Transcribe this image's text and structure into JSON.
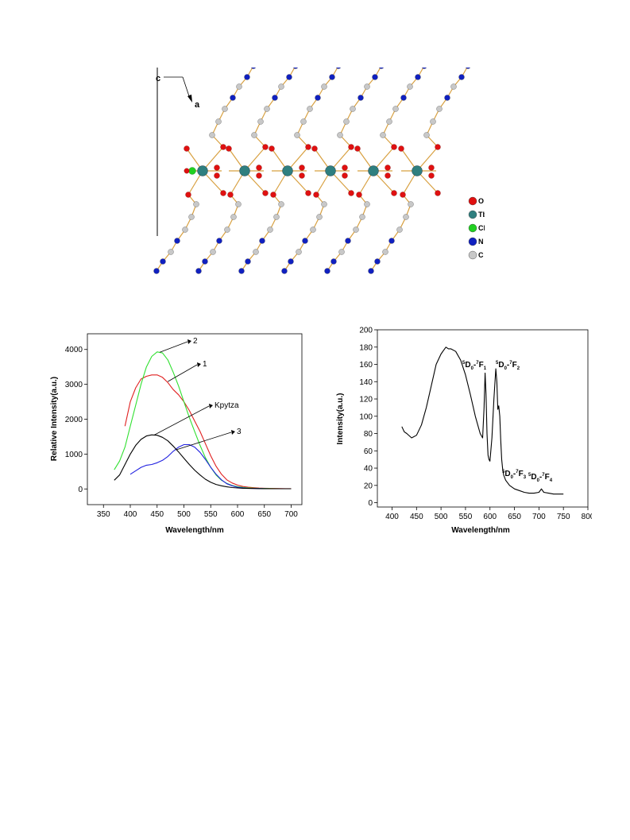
{
  "crystal": {
    "axis_c": "c",
    "axis_a": "a",
    "legend": [
      {
        "label": "O",
        "color": "#e01010"
      },
      {
        "label": "Tb",
        "color": "#2f7f7f"
      },
      {
        "label": "Cl",
        "color": "#20d020"
      },
      {
        "label": "N",
        "color": "#1020c0"
      },
      {
        "label": "C",
        "color": "#c8c8c8"
      }
    ]
  },
  "chart_data": [
    {
      "type": "line",
      "xlabel": "Wavelength/nm",
      "ylabel": "Relative Intensity(a.u.)",
      "xlim": [
        320,
        720
      ],
      "ylim": [
        -450,
        4450
      ],
      "xticks": [
        350,
        400,
        450,
        500,
        550,
        600,
        650,
        700
      ],
      "yticks": [
        0,
        1000,
        2000,
        3000,
        4000
      ],
      "series": [
        {
          "name": "1",
          "color": "#e02020",
          "x": [
            390,
            400,
            410,
            420,
            430,
            440,
            450,
            460,
            470,
            480,
            490,
            500,
            510,
            520,
            530,
            540,
            550,
            560,
            570,
            580,
            590,
            600,
            610,
            620,
            630,
            640,
            650,
            660,
            670,
            680,
            690,
            700
          ],
          "y": [
            1800,
            2500,
            2900,
            3150,
            3230,
            3270,
            3270,
            3200,
            3050,
            2850,
            2700,
            2500,
            2250,
            1950,
            1650,
            1300,
            950,
            650,
            420,
            260,
            170,
            110,
            70,
            50,
            35,
            25,
            20,
            15,
            12,
            10,
            8,
            8
          ]
        },
        {
          "name": "2",
          "color": "#30e030",
          "x": [
            370,
            380,
            390,
            400,
            410,
            420,
            430,
            440,
            450,
            460,
            470,
            480,
            490,
            500,
            510,
            520,
            530,
            540,
            550,
            560,
            570,
            580,
            590,
            600,
            610,
            620,
            630,
            640,
            650,
            660,
            670,
            680,
            690,
            700
          ],
          "y": [
            550,
            800,
            1200,
            1800,
            2400,
            3000,
            3500,
            3800,
            3930,
            3900,
            3700,
            3350,
            2950,
            2500,
            2050,
            1650,
            1250,
            900,
            620,
            400,
            250,
            160,
            100,
            65,
            45,
            30,
            22,
            16,
            12,
            10,
            8,
            6,
            5,
            5
          ]
        },
        {
          "name": "3",
          "color": "#2020e0",
          "x": [
            400,
            410,
            420,
            430,
            440,
            450,
            460,
            470,
            480,
            490,
            500,
            510,
            520,
            530,
            540,
            550,
            560,
            570,
            580,
            590,
            600,
            610,
            620,
            630,
            640,
            650,
            660,
            670,
            680,
            690,
            700
          ],
          "y": [
            420,
            520,
            620,
            680,
            700,
            750,
            820,
            930,
            1080,
            1200,
            1270,
            1270,
            1200,
            1050,
            850,
            620,
            420,
            260,
            150,
            90,
            50,
            30,
            20,
            15,
            10,
            8,
            6,
            5,
            5,
            5,
            5
          ]
        },
        {
          "name": "Kpytza",
          "color": "#000000",
          "x": [
            370,
            380,
            390,
            400,
            410,
            420,
            430,
            440,
            450,
            460,
            470,
            480,
            490,
            500,
            510,
            520,
            530,
            540,
            550,
            560,
            570,
            580,
            590,
            600,
            610,
            620,
            630,
            640,
            650,
            660,
            670,
            680,
            690,
            700
          ],
          "y": [
            250,
            400,
            700,
            1000,
            1250,
            1420,
            1520,
            1550,
            1540,
            1480,
            1380,
            1230,
            1060,
            880,
            700,
            540,
            400,
            280,
            190,
            130,
            90,
            60,
            40,
            28,
            20,
            15,
            12,
            10,
            8,
            6,
            5,
            5,
            5,
            5
          ]
        }
      ],
      "annotations": [
        "2",
        "1",
        "Kpytza",
        "3"
      ]
    },
    {
      "type": "line",
      "xlabel": "Wavelength/nm",
      "ylabel": "Intensity(a.u.)",
      "xlim": [
        370,
        800
      ],
      "ylim": [
        -5,
        200
      ],
      "xticks": [
        400,
        450,
        500,
        550,
        600,
        650,
        700,
        750,
        800
      ],
      "yticks": [
        0,
        20,
        40,
        60,
        80,
        100,
        120,
        140,
        160,
        180,
        200
      ],
      "series": [
        {
          "color": "#000000",
          "x": [
            420,
            425,
            430,
            440,
            450,
            460,
            470,
            480,
            490,
            500,
            505,
            510,
            515,
            520,
            530,
            540,
            550,
            560,
            570,
            580,
            585,
            588,
            590,
            592,
            594,
            596,
            598,
            600,
            604,
            608,
            612,
            614,
            616,
            618,
            620,
            622,
            624,
            626,
            628,
            632,
            640,
            650,
            660,
            670,
            680,
            690,
            700,
            705,
            710,
            720,
            730,
            740,
            750
          ],
          "y": [
            88,
            82,
            80,
            75,
            78,
            90,
            110,
            135,
            160,
            172,
            176,
            180,
            178,
            178,
            175,
            165,
            148,
            125,
            100,
            80,
            75,
            110,
            150,
            125,
            80,
            55,
            50,
            48,
            75,
            120,
            155,
            140,
            108,
            112,
            100,
            72,
            50,
            38,
            32,
            26,
            20,
            16,
            14,
            12,
            11,
            11,
            12,
            16,
            12,
            11,
            10,
            10,
            10
          ]
        }
      ],
      "annotations": [
        {
          "main": "D",
          "pre_sup": "5",
          "sub": "0",
          "dash": "-",
          "pre_sup2": "7",
          "main2": "F",
          "sub2": "1"
        },
        {
          "main": "D",
          "pre_sup": "5",
          "sub": "0",
          "dash": "-",
          "pre_sup2": "7",
          "main2": "F",
          "sub2": "2"
        },
        {
          "main": "D",
          "pre_sup": "5",
          "sub": "0",
          "dash": "-",
          "pre_sup2": "7",
          "main2": "F",
          "sub2": "3"
        },
        {
          "main": "D",
          "pre_sup": "5",
          "sub": "0",
          "dash": "-",
          "pre_sup2": "7",
          "main2": "F",
          "sub2": "4"
        }
      ]
    }
  ]
}
